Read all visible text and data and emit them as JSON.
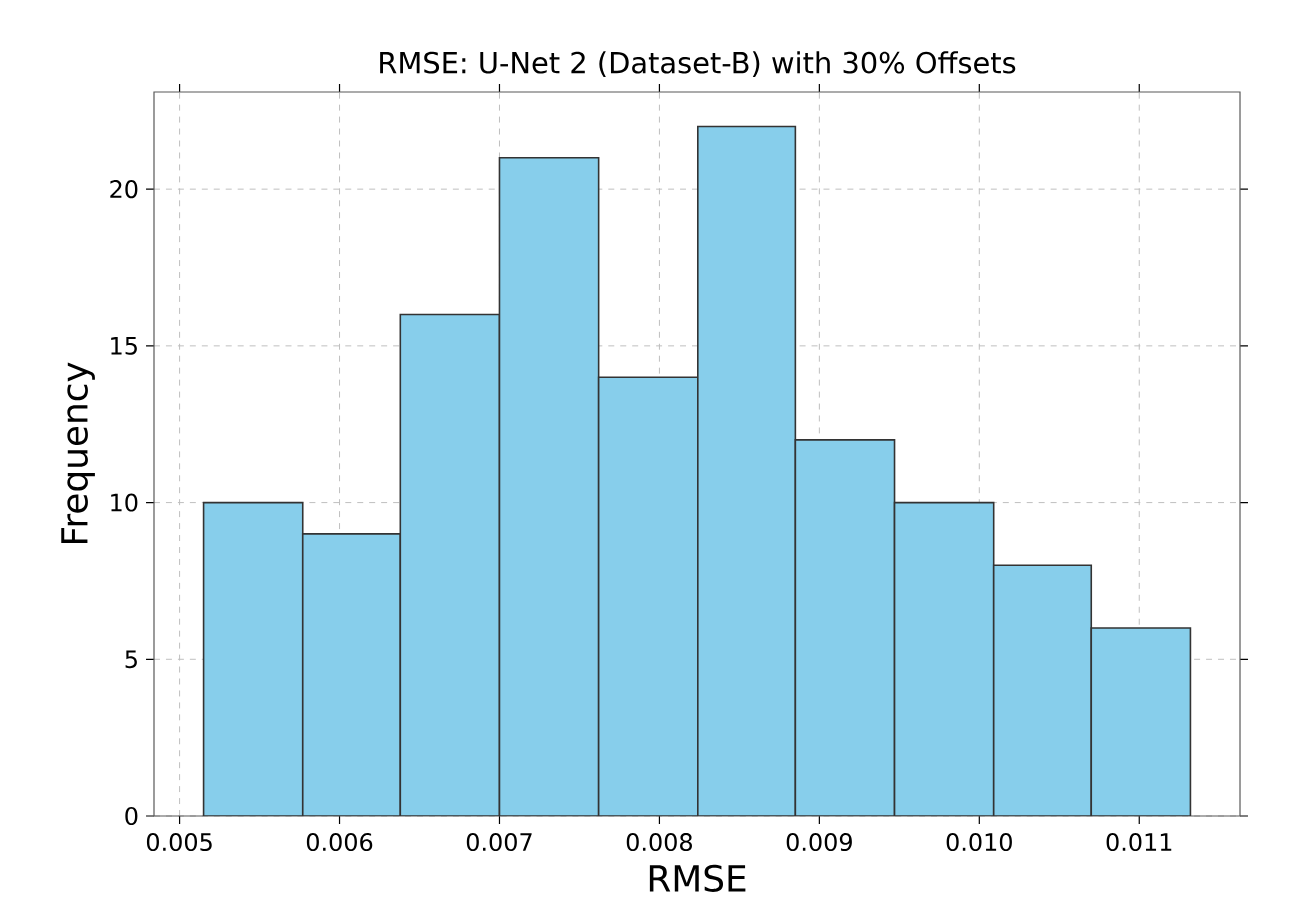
{
  "chart_data": {
    "type": "histogram",
    "title": "RMSE: U-Net 2 (Dataset-B) with 30% Offsets",
    "xlabel": "RMSE",
    "ylabel": "Frequency",
    "bins": [
      0.00515,
      0.00577,
      0.00638,
      0.007,
      0.00762,
      0.00824,
      0.00885,
      0.00947,
      0.01009,
      0.0107,
      0.01132
    ],
    "values": [
      10,
      9,
      16,
      21,
      14,
      22,
      12,
      10,
      8,
      6
    ],
    "color": "#87ceeb",
    "xlim": [
      0.00484,
      0.01163
    ],
    "ylim": [
      0,
      23.1
    ],
    "xticks": [
      {
        "value": 0.005,
        "label": "0.005"
      },
      {
        "value": 0.006,
        "label": "0.006"
      },
      {
        "value": 0.007,
        "label": "0.007"
      },
      {
        "value": 0.008,
        "label": "0.008"
      },
      {
        "value": 0.009,
        "label": "0.009"
      },
      {
        "value": 0.01,
        "label": "0.010"
      },
      {
        "value": 0.011,
        "label": "0.011"
      }
    ],
    "yticks": [
      0,
      5,
      10,
      15,
      20
    ],
    "grid": true
  }
}
